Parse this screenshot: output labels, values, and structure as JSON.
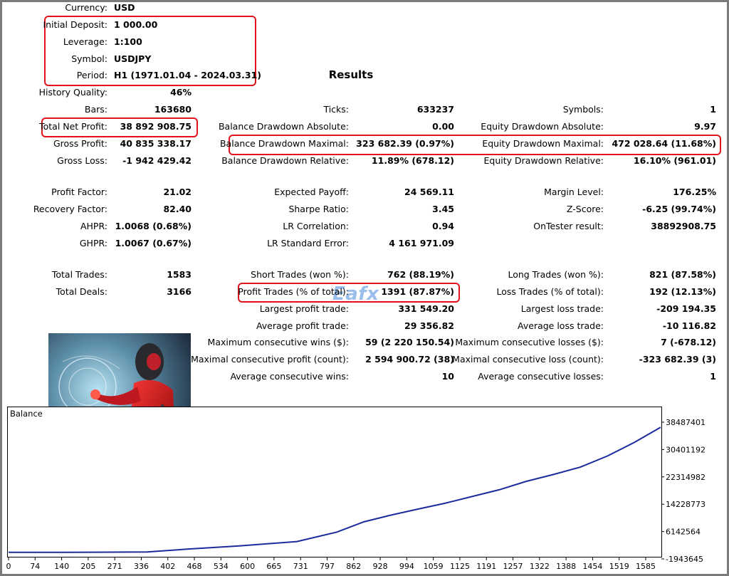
{
  "settings": [
    {
      "label": "Currency:",
      "value": "USD"
    },
    {
      "label": "Initial Deposit:",
      "value": "1 000.00"
    },
    {
      "label": "Leverage:",
      "value": "1:100"
    },
    {
      "label": "Symbol:",
      "value": "USDJPY"
    },
    {
      "label": "Period:",
      "value": "H1 (1971.01.04 - 2024.03.31)"
    }
  ],
  "results_title": "Results",
  "stats": {
    "history_quality": {
      "label": "History Quality:",
      "value": "46%"
    },
    "col1": [
      {
        "label": "Bars:",
        "value": "163680"
      },
      {
        "label": "Total Net Profit:",
        "value": "38 892 908.75"
      },
      {
        "label": "Gross Profit:",
        "value": "40 835 338.17"
      },
      {
        "label": "Gross Loss:",
        "value": "-1 942 429.42"
      },
      {
        "label": "Profit Factor:",
        "value": "21.02"
      },
      {
        "label": "Recovery Factor:",
        "value": "82.40"
      },
      {
        "label": "AHPR:",
        "value": "1.0068 (0.68%)"
      },
      {
        "label": "GHPR:",
        "value": "1.0067 (0.67%)"
      },
      {
        "label": "Total Trades:",
        "value": "1583"
      },
      {
        "label": "Total Deals:",
        "value": "3166"
      }
    ],
    "col2": [
      {
        "label": "Ticks:",
        "value": "633237"
      },
      {
        "label": "Balance Drawdown Absolute:",
        "value": "0.00"
      },
      {
        "label": "Balance Drawdown Maximal:",
        "value": "323 682.39 (0.97%)"
      },
      {
        "label": "Balance Drawdown Relative:",
        "value": "11.89% (678.12)"
      },
      {
        "label": "Expected Payoff:",
        "value": "24 569.11"
      },
      {
        "label": "Sharpe Ratio:",
        "value": "3.45"
      },
      {
        "label": "LR Correlation:",
        "value": "0.94"
      },
      {
        "label": "LR Standard Error:",
        "value": "4 161 971.09"
      },
      {
        "label": "Short Trades (won %):",
        "value": "762 (88.19%)"
      },
      {
        "label": "Profit Trades (% of total):",
        "value": "1391 (87.87%)"
      },
      {
        "label": "Largest profit trade:",
        "value": "331 549.20"
      },
      {
        "label": "Average profit trade:",
        "value": "29 356.82"
      },
      {
        "label": "Maximum consecutive wins ($):",
        "value": "59 (2 220 150.54)"
      },
      {
        "label": "Maximal consecutive profit (count):",
        "value": "2 594 900.72 (38)"
      },
      {
        "label": "Average consecutive wins:",
        "value": "10"
      }
    ],
    "col3": [
      {
        "label": "Symbols:",
        "value": "1"
      },
      {
        "label": "Equity Drawdown Absolute:",
        "value": "9.97"
      },
      {
        "label": "Equity Drawdown Maximal:",
        "value": "472 028.64 (11.68%)"
      },
      {
        "label": "Equity Drawdown Relative:",
        "value": "16.10% (961.01)"
      },
      {
        "label": "Margin Level:",
        "value": "176.25%"
      },
      {
        "label": "Z-Score:",
        "value": "-6.25 (99.74%)"
      },
      {
        "label": "OnTester result:",
        "value": "38892908.75"
      },
      {
        "label": "Long Trades (won %):",
        "value": "821 (87.58%)"
      },
      {
        "label": "Loss Trades (% of total):",
        "value": "192 (12.13%)"
      },
      {
        "label": "Largest loss trade:",
        "value": "-209 194.35"
      },
      {
        "label": "Average loss trade:",
        "value": "-10 116.82"
      },
      {
        "label": "Maximum consecutive losses ($):",
        "value": "7 (-678.12)"
      },
      {
        "label": "Maximal consecutive loss (count):",
        "value": "-323 682.39 (3)"
      },
      {
        "label": "Average consecutive losses:",
        "value": "1"
      }
    ]
  },
  "watermark": "Eafx",
  "artwork_name": "red-robot-woman-illustration",
  "colors": {
    "highlight": "#e0141a",
    "balance_line": "#1c2b9c",
    "frame": "#7a7a7a"
  },
  "chart_data": {
    "type": "line",
    "title": "Balance",
    "x_ticks": [
      "0",
      "74",
      "140",
      "205",
      "271",
      "336",
      "402",
      "468",
      "534",
      "600",
      "665",
      "731",
      "797",
      "862",
      "928",
      "994",
      "1059",
      "1125",
      "1191",
      "1257",
      "1322",
      "1388",
      "1454",
      "1519",
      "1585"
    ],
    "y_ticks": [
      "38487401",
      "30401192",
      "22314982",
      "14228773",
      "6142564",
      "-1943645"
    ],
    "ylim": [
      -1943645,
      38487401
    ],
    "xlim": [
      0,
      1583
    ],
    "x": [
      0,
      140,
      336,
      440,
      560,
      700,
      797,
      862,
      928,
      994,
      1059,
      1125,
      1191,
      1257,
      1322,
      1388,
      1454,
      1519,
      1583
    ],
    "y": [
      0,
      20000,
      100000,
      1000000,
      1900000,
      3200000,
      6000000,
      9000000,
      11000000,
      12800000,
      14500000,
      16500000,
      18500000,
      21000000,
      23000000,
      25200000,
      28500000,
      32500000,
      37000000
    ]
  }
}
